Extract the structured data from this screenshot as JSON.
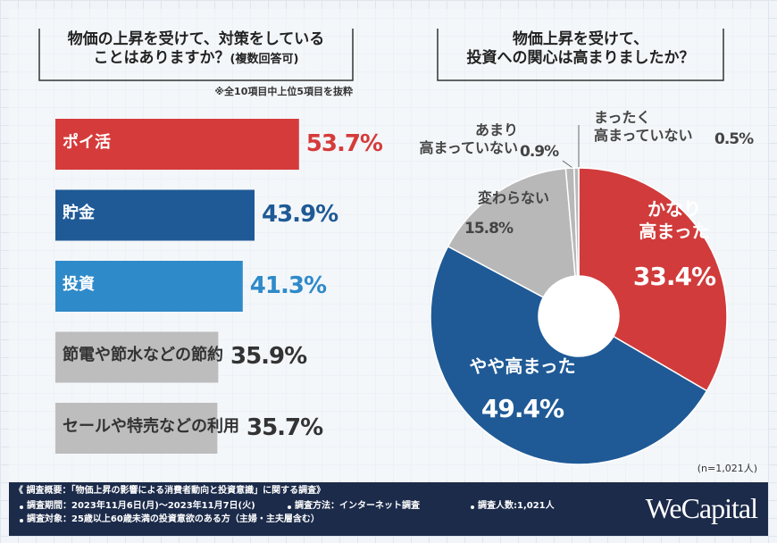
{
  "chart_data": [
    {
      "type": "bar",
      "orientation": "horizontal",
      "title": "物価の上昇を受けて、対策をしている\nことはありますか？",
      "subtitle": "(複数回答可)",
      "note": "※全10項目中上位5項目を抜粋",
      "categories": [
        "ポイ活",
        "貯金",
        "投資",
        "節電や節水などの節約",
        "セールや特売などの利用"
      ],
      "values": [
        53.7,
        43.9,
        41.3,
        35.9,
        35.7
      ],
      "value_labels": [
        "53.7%",
        "43.9%",
        "41.3%",
        "35.9%",
        "35.7%"
      ],
      "colors": [
        "#d63b3b",
        "#1f5a96",
        "#2f8ac9",
        "#bdbdbd",
        "#bdbdbd"
      ]
    },
    {
      "type": "pie",
      "donut": true,
      "title": "物価上昇を受けて、\n投資への関心は高まりましたか？",
      "categories": [
        "かなり\n高まった",
        "やや高まった",
        "変わらない",
        "あまり\n高まっていない",
        "まったく\n高まっていない"
      ],
      "values": [
        33.4,
        49.4,
        15.8,
        0.9,
        0.5
      ],
      "value_labels": [
        "33.4%",
        "49.4%",
        "15.8%",
        "0.9%",
        "0.5%"
      ],
      "colors": [
        "#d13b3b",
        "#1f5a96",
        "#b8b8b8",
        "#b8b8b8",
        "#b8b8b8"
      ],
      "note": "(n=1,021人)"
    }
  ],
  "footer": {
    "heading": "《 調査概要：「物価上昇の影響による消費者動向と投資意識」に関する調査》",
    "lines": [
      "調査期間：2023年11月6日(月)～2023年11月7日(火)",
      "調査方法：インターネット調査",
      "調査人数:1,021人",
      "調査対象：25歳以上60歳未満の投資意欲のある方（主婦・主夫層含む）"
    ],
    "brand": "WeCapital"
  }
}
